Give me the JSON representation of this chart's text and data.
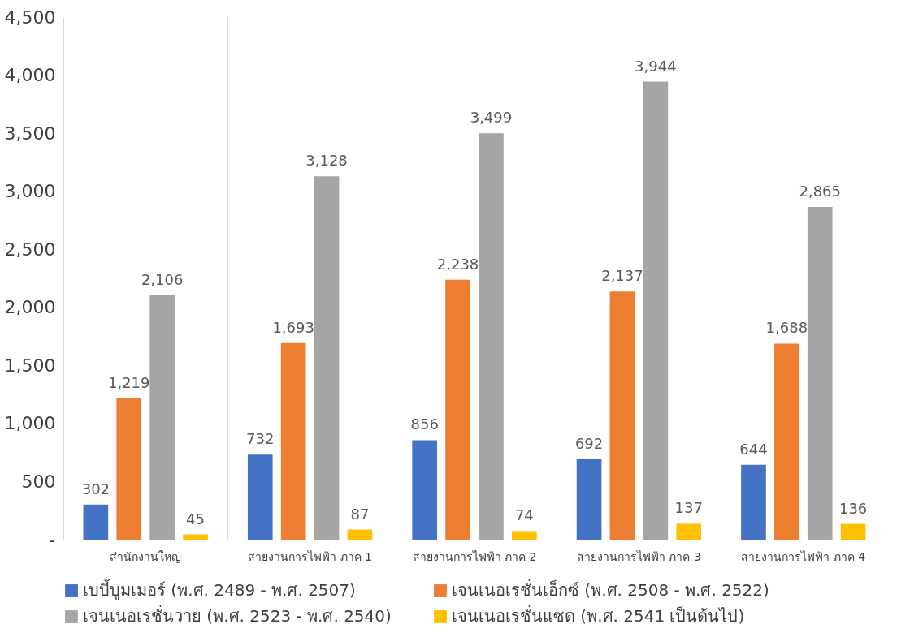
{
  "chart_data": {
    "type": "bar",
    "categories": [
      "สำนักงานใหญ่",
      "สายงานการไฟฟ้า ภาค 1",
      "สายงานการไฟฟ้า ภาค 2",
      "สายงานการไฟฟ้า ภาค 3",
      "สายงานการไฟฟ้า ภาค 4"
    ],
    "series": [
      {
        "name": "เบบี้บูมเมอร์ (พ.ศ. 2489 - พ.ศ. 2507)",
        "color": "#4472c4",
        "values": [
          302,
          732,
          856,
          692,
          644
        ],
        "value_labels": [
          "302",
          "732",
          "856",
          "692",
          "644"
        ]
      },
      {
        "name": "เจนเนอเรชั่นเอ็กซ์  (พ.ศ. 2508 - พ.ศ. 2522)",
        "color": "#ed7d31",
        "values": [
          1219,
          1693,
          2238,
          2137,
          1688
        ],
        "value_labels": [
          "1,219",
          "1,693",
          "2,238",
          "2,137",
          "1,688"
        ]
      },
      {
        "name": "เจนเนอเรชั่นวาย (พ.ศ. 2523 - พ.ศ. 2540)",
        "color": "#a5a5a5",
        "values": [
          2106,
          3128,
          3499,
          3944,
          2865
        ],
        "value_labels": [
          "2,106",
          "3,128",
          "3,499",
          "3,944",
          "2,865"
        ]
      },
      {
        "name": "เจนเนอเรชั่นแซด (พ.ศ. 2541 เป็นต้นไป)",
        "color": "#ffc000",
        "values": [
          45,
          87,
          74,
          137,
          136
        ],
        "value_labels": [
          "45",
          "87",
          "74",
          "137",
          "136"
        ]
      }
    ],
    "ylim": [
      0,
      4500
    ],
    "yticks": [
      {
        "value": 0,
        "label": "-"
      },
      {
        "value": 500,
        "label": "500"
      },
      {
        "value": 1000,
        "label": "1,000"
      },
      {
        "value": 1500,
        "label": "1,500"
      },
      {
        "value": 2000,
        "label": "2,000"
      },
      {
        "value": 2500,
        "label": "2,500"
      },
      {
        "value": 3000,
        "label": "3,000"
      },
      {
        "value": 3500,
        "label": "3,500"
      },
      {
        "value": 4000,
        "label": "4,000"
      },
      {
        "value": 4500,
        "label": "4,500"
      }
    ],
    "grid": "x",
    "legend": "bottom"
  }
}
